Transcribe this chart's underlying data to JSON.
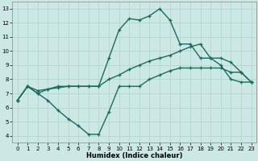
{
  "xlabel": "Humidex (Indice chaleur)",
  "background_color": "#cce8e4",
  "grid_color": "#b8d8d4",
  "line_color": "#1a6b5e",
  "xlim": [
    -0.5,
    23.5
  ],
  "ylim": [
    3.5,
    13.5
  ],
  "xticks": [
    0,
    1,
    2,
    3,
    4,
    5,
    6,
    7,
    8,
    9,
    10,
    11,
    12,
    13,
    14,
    15,
    16,
    17,
    18,
    19,
    20,
    21,
    22,
    23
  ],
  "yticks": [
    4,
    5,
    6,
    7,
    8,
    9,
    10,
    11,
    12,
    13
  ],
  "line1_y": [
    6.5,
    7.5,
    7.0,
    7.3,
    7.5,
    7.5,
    7.5,
    7.5,
    7.5,
    9.5,
    11.5,
    12.3,
    12.2,
    12.5,
    13.0,
    12.2,
    10.5,
    10.5,
    9.5,
    9.5,
    9.0,
    8.0,
    7.8,
    7.8
  ],
  "line2_y": [
    6.5,
    7.5,
    7.2,
    7.3,
    7.4,
    7.5,
    7.5,
    7.5,
    7.5,
    8.0,
    8.3,
    8.7,
    9.0,
    9.3,
    9.5,
    9.7,
    10.0,
    10.3,
    10.5,
    9.5,
    9.5,
    9.2,
    8.5,
    7.8
  ],
  "line3_y": [
    6.5,
    7.5,
    7.0,
    6.5,
    5.8,
    5.2,
    4.7,
    4.1,
    4.1,
    5.7,
    7.5,
    7.5,
    7.5,
    8.0,
    8.3,
    8.6,
    8.8,
    8.8,
    8.8,
    8.8,
    8.8,
    8.5,
    8.5,
    7.8
  ],
  "marker": "+",
  "markersize": 3,
  "linewidth": 1.0
}
